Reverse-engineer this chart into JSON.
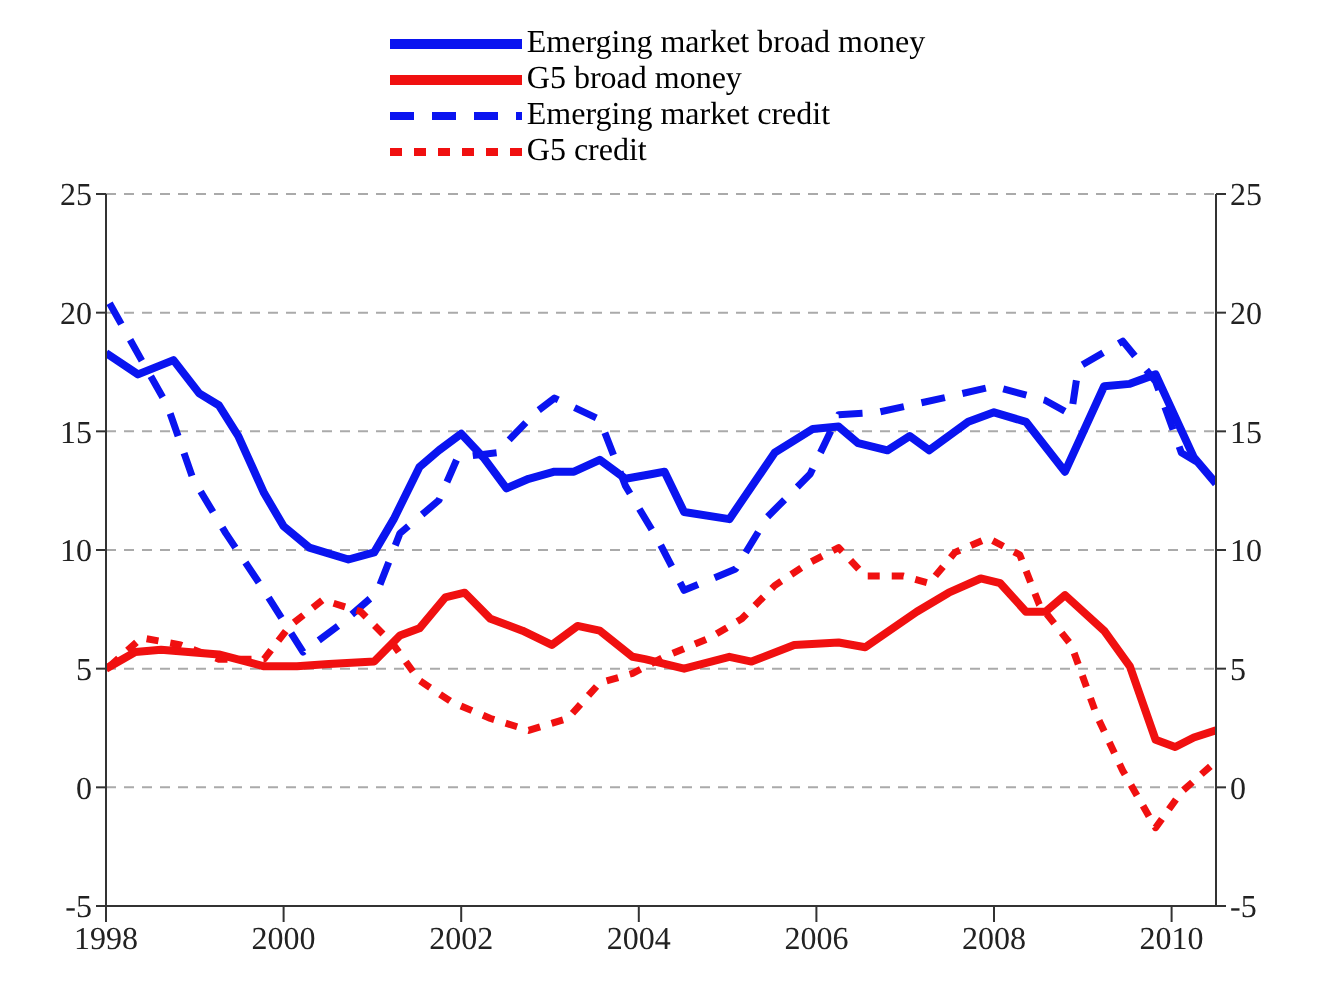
{
  "chart_data": {
    "type": "line",
    "xlim": [
      1998,
      2010.5
    ],
    "xticks": [
      1998,
      2000,
      2002,
      2004,
      2006,
      2008,
      2010
    ],
    "ylim": [
      -5,
      25
    ],
    "yticks": [
      -5,
      0,
      5,
      10,
      15,
      20,
      25
    ],
    "y2lim": [
      -5,
      25
    ],
    "y2ticks": [
      -5,
      0,
      5,
      10,
      15,
      20,
      25
    ],
    "grid": "y",
    "legend": "top",
    "marker": "none",
    "series": [
      {
        "name": "Emerging market broad money",
        "color": "#0a14f0",
        "line_style": "solid",
        "x": [
          1998,
          1998.36,
          1998.76,
          1999.05,
          1999.27,
          1999.49,
          1999.78,
          2000,
          2000.29,
          2000.73,
          2001.02,
          2001.24,
          2001.53,
          2001.75,
          2002,
          2002.25,
          2002.51,
          2002.76,
          2003.05,
          2003.27,
          2003.56,
          2003.85,
          2004.15,
          2004.29,
          2004.51,
          2005.02,
          2005.53,
          2005.96,
          2006.25,
          2006.47,
          2006.8,
          2007.05,
          2007.27,
          2007.71,
          2008,
          2008.36,
          2008.8,
          2009.24,
          2009.53,
          2009.82,
          2010.25,
          2010.5
        ],
        "values": [
          18.3,
          17.4,
          18,
          16.6,
          16.1,
          14.8,
          12.4,
          11,
          10.1,
          9.6,
          9.9,
          11.3,
          13.5,
          14.2,
          14.9,
          13.9,
          12.6,
          13,
          13.3,
          13.3,
          13.8,
          13,
          13.2,
          13.3,
          11.6,
          11.3,
          14.1,
          15.1,
          15.2,
          14.5,
          14.2,
          14.8,
          14.2,
          15.4,
          15.8,
          15.4,
          13.3,
          16.9,
          17,
          17.4,
          13.9,
          12.8
        ]
      },
      {
        "name": "G5 broad money",
        "color": "#f01010",
        "line_style": "solid",
        "x": [
          1998,
          1998.33,
          1998.62,
          1999.27,
          1999.78,
          2000.15,
          2000.51,
          2001.02,
          2001.31,
          2001.53,
          2001.82,
          2002.04,
          2002.33,
          2002.69,
          2003.02,
          2003.31,
          2003.56,
          2003.93,
          2004.07,
          2004.51,
          2005.02,
          2005.27,
          2005.75,
          2006.25,
          2006.55,
          2007.13,
          2007.49,
          2007.85,
          2008.07,
          2008.36,
          2008.58,
          2008.8,
          2009.24,
          2009.53,
          2009.82,
          2010.04,
          2010.25,
          2010.5
        ],
        "values": [
          5,
          5.7,
          5.8,
          5.6,
          5.1,
          5.1,
          5.2,
          5.3,
          6.4,
          6.7,
          8,
          8.2,
          7.1,
          6.6,
          6,
          6.8,
          6.6,
          5.5,
          5.4,
          5,
          5.5,
          5.3,
          6,
          6.1,
          5.9,
          7.4,
          8.2,
          8.8,
          8.6,
          7.4,
          7.4,
          8.1,
          6.6,
          5.1,
          2,
          1.7,
          2.1,
          2.4
        ]
      },
      {
        "name": "Emerging market credit",
        "color": "#0a14f0",
        "line_style": "dashed",
        "x": [
          1998.04,
          1998.4,
          1998.69,
          1998.98,
          1999.35,
          1999.78,
          2000.22,
          2000.65,
          2001.05,
          2001.31,
          2001.75,
          2001.96,
          2002.4,
          2002.84,
          2003.05,
          2003.56,
          2003.85,
          2004.22,
          2004.51,
          2005.09,
          2005.45,
          2005.93,
          2006.25,
          2006.69,
          2007.42,
          2008,
          2008.58,
          2008.87,
          2008.95,
          2009.45,
          2009.82,
          2010.11,
          2010.33
        ],
        "values": [
          20.4,
          18,
          16.1,
          13,
          10.7,
          8.3,
          5.7,
          6.9,
          8.2,
          10.7,
          12.1,
          13.9,
          14.1,
          15.8,
          16.4,
          15.5,
          12.7,
          10.4,
          8.3,
          9.2,
          11.4,
          13.2,
          15.7,
          15.8,
          16.4,
          16.9,
          16.3,
          15.7,
          17.7,
          18.8,
          17.1,
          14.1,
          13.6
        ]
      },
      {
        "name": "G5 credit",
        "color": "#f01010",
        "line_style": "dotted",
        "x": [
          1998.04,
          1998.4,
          1998.84,
          1999.27,
          1999.78,
          2000.07,
          2000.44,
          2000.87,
          2001.24,
          2001.53,
          2001.89,
          2002.33,
          2002.76,
          2003.2,
          2003.56,
          2003.93,
          2004.29,
          2004.8,
          2005.16,
          2005.53,
          2005.89,
          2006.25,
          2006.55,
          2006.98,
          2007.27,
          2007.56,
          2007.93,
          2008.29,
          2008.51,
          2008.87,
          2009.16,
          2009.45,
          2009.82,
          2010.11,
          2010.5
        ],
        "values": [
          5.1,
          6.3,
          6,
          5.4,
          5.4,
          6.8,
          7.9,
          7.4,
          6,
          4.5,
          3.6,
          2.9,
          2.4,
          2.9,
          4.4,
          4.8,
          5.5,
          6.3,
          7.1,
          8.5,
          9.4,
          10.1,
          8.9,
          8.9,
          8.6,
          9.9,
          10.5,
          9.8,
          7.7,
          6,
          3,
          0.7,
          -1.7,
          -0.2,
          1.1
        ]
      }
    ]
  }
}
